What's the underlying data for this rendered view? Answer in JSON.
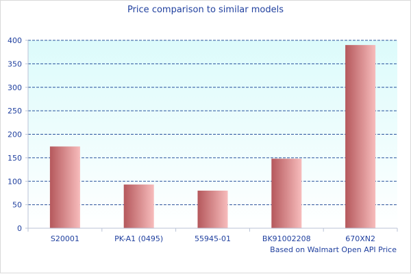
{
  "chart_data": {
    "type": "bar",
    "title": "Price comparison to similar models",
    "categories": [
      "S20001",
      "PK-A1 (0495)",
      "55945-01",
      "BK91002208",
      "670XN2"
    ],
    "values": [
      174,
      93,
      80,
      148,
      390
    ],
    "ylim": [
      0,
      400
    ],
    "yticks": [
      0,
      50,
      100,
      150,
      200,
      250,
      300,
      350,
      400
    ],
    "xlabel": "",
    "ylabel": "",
    "note": "Based on Walmart Open API Price",
    "grid": true,
    "legend": "none"
  },
  "colors": {
    "plot_bg_top": "#dcfbfb",
    "plot_bg_bottom": "#ffffff",
    "bar_dark": "#b5585c",
    "bar_light": "#f7bcbc",
    "grid": "#27509b",
    "axis": "#b8c2d6",
    "text": "#1f3f9e"
  }
}
